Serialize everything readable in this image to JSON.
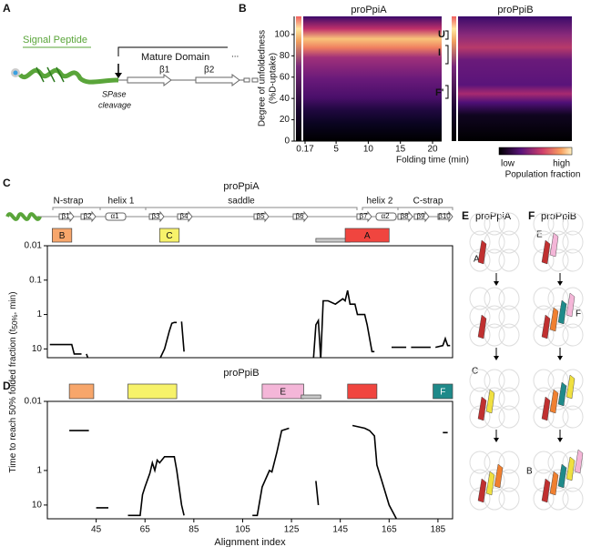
{
  "panel_a": {
    "label": "A",
    "signal_peptide": "Signal Peptide",
    "mature_domain": "Mature Domain",
    "strands": [
      "β1",
      "β2"
    ],
    "ellipsis": "...",
    "cleavage": [
      "SPase",
      "cleavage"
    ]
  },
  "panel_b": {
    "label": "B",
    "titles": [
      "proPpiA",
      "proPpiB"
    ],
    "ylabel": [
      "Degree of unfoldedness",
      "(%D-uptake)"
    ],
    "ylim": [
      0,
      117
    ],
    "yticks": [
      0,
      20,
      40,
      60,
      80,
      100
    ],
    "xlim": [
      0.17,
      20
    ],
    "xticks": [
      0.17,
      5,
      10,
      15,
      20
    ],
    "xlabel": "Folding time (min)",
    "states": [
      "U",
      "I",
      "F'"
    ],
    "colorbar": [
      "low",
      "high"
    ],
    "colorbar_label": "Population fraction"
  },
  "shared_ylabel": [
    "Time to reach 50% folded fraction (t",
    "50%",
    ", min)"
  ],
  "chart_data": [
    {
      "type": "line",
      "panel_label": "C",
      "title": "proPpiA",
      "color": "#000000",
      "ylog": true,
      "y_reversed": true,
      "xlim": [
        25,
        191
      ],
      "ylim": [
        0.01,
        18
      ],
      "yticks": [
        0.01,
        0.1,
        1,
        10
      ],
      "topology": {
        "regions": [
          "N-strap",
          "helix 1",
          "saddle",
          "helix 2",
          "C-strap"
        ],
        "elements": [
          "β1",
          "β2",
          "α1",
          "β3",
          "β4",
          "β5",
          "β6",
          "β7",
          "α2",
          "β8",
          "β9",
          "β10"
        ]
      },
      "regions": [
        {
          "name": "B",
          "color": "#f7a66b",
          "x": [
            27,
            35
          ]
        },
        {
          "name": "C",
          "color": "#f7f26a",
          "x": [
            71,
            79
          ]
        },
        {
          "name": null,
          "color": "#c8c8c8",
          "x": [
            135,
            149
          ]
        },
        {
          "name": "A",
          "color": "#f0453f",
          "x": [
            147,
            165
          ]
        }
      ],
      "x": [
        26,
        35,
        36,
        39,
        40,
        41,
        42,
        43,
        71,
        73,
        75,
        76,
        77,
        78,
        79,
        80,
        81,
        82,
        134,
        135,
        136,
        137,
        138,
        140,
        143,
        146,
        147,
        148,
        149,
        151,
        152,
        155,
        156,
        158,
        159,
        160,
        166,
        172,
        173,
        174,
        182,
        183,
        184,
        187,
        188,
        189,
        190
      ],
      "values": [
        7.5,
        7.5,
        14,
        14,
        null,
        14,
        22,
        null,
        20,
        10,
        3,
        1.8,
        1.7,
        1.7,
        null,
        1.6,
        12,
        null,
        20,
        2,
        1.5,
        20,
        0.4,
        0.4,
        0.5,
        0.35,
        0.4,
        0.2,
        0.5,
        0.5,
        1,
        1,
        2,
        12,
        12,
        null,
        9,
        9,
        null,
        9,
        9,
        null,
        9,
        8,
        5,
        8,
        8
      ]
    },
    {
      "type": "line",
      "panel_label": "D",
      "title": "proPpiB",
      "color": "#000000",
      "ylog": true,
      "y_reversed": true,
      "xlim": [
        25,
        191
      ],
      "ylim": [
        0.01,
        25
      ],
      "yticks": [
        0.01,
        1,
        10
      ],
      "xlabel": "Alignment index",
      "xticks": [
        45,
        65,
        85,
        105,
        125,
        145,
        165,
        185
      ],
      "regions": [
        {
          "name": null,
          "color": "#f7a66b",
          "x": [
            34,
            44
          ]
        },
        {
          "name": null,
          "color": "#f7f26a",
          "x": [
            58,
            78
          ]
        },
        {
          "name": "E",
          "color": "#f4b6d8",
          "x": [
            113,
            130
          ]
        },
        {
          "name": null,
          "color": "#c8c8c8",
          "x": [
            129,
            137
          ]
        },
        {
          "name": null,
          "color": "#f0453f",
          "x": [
            148,
            160
          ]
        },
        {
          "name": "F",
          "color": "#1f8a8a",
          "x": [
            183,
            191
          ]
        }
      ],
      "x": [
        34,
        42,
        43,
        45,
        50,
        51,
        58,
        63,
        64,
        65,
        67,
        68,
        69,
        70,
        71,
        73,
        75,
        77,
        78,
        80,
        81,
        82,
        109,
        111,
        113,
        116,
        117,
        119,
        121,
        124,
        125,
        135,
        136,
        137,
        150,
        155,
        157,
        159,
        160,
        162,
        165,
        168,
        169,
        187,
        189
      ],
      "values": [
        0.07,
        0.07,
        null,
        12,
        12,
        null,
        20,
        20,
        5,
        3,
        1.2,
        0.6,
        1,
        0.5,
        0.6,
        0.4,
        0.4,
        0.4,
        1,
        10,
        20,
        null,
        20,
        20,
        3,
        1,
        1.1,
        0.3,
        0.07,
        0.06,
        null,
        2,
        10,
        null,
        0.05,
        0.06,
        0.07,
        0.1,
        0.7,
        2,
        10,
        25,
        null,
        0.08,
        0.08
      ]
    }
  ],
  "panel_e": {
    "label": "E",
    "title": "proPpiA",
    "markers": [
      "A",
      "C",
      "B"
    ]
  },
  "panel_f": {
    "label": "F",
    "title": "proPpiB",
    "markers": [
      "E",
      "F"
    ]
  }
}
